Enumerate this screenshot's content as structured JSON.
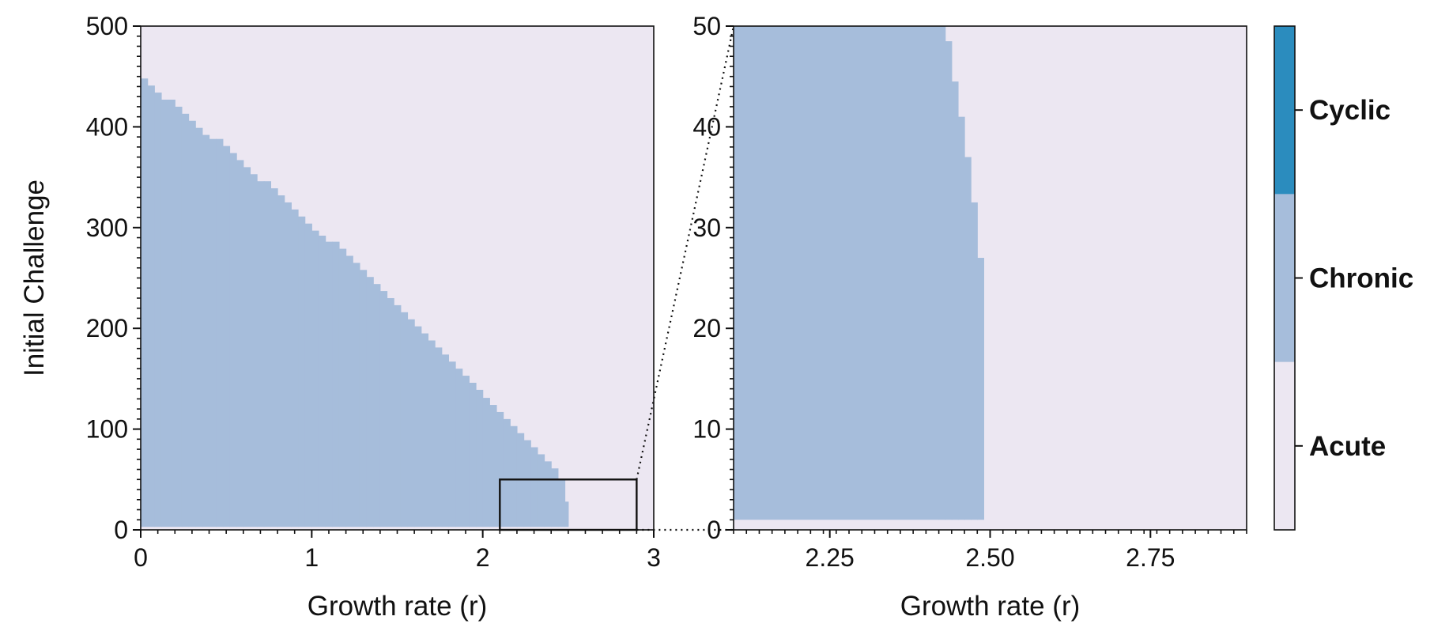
{
  "chart_data": [
    {
      "type": "heatmap",
      "panel": "main",
      "xlabel": "Growth rate (r)",
      "ylabel": "Initial Challenge",
      "xlim": [
        0,
        3
      ],
      "ylim": [
        0,
        500
      ],
      "xticks": [
        {
          "value": 0,
          "label": "0"
        },
        {
          "value": 1,
          "label": "1"
        },
        {
          "value": 2,
          "label": "2"
        },
        {
          "value": 3,
          "label": "3"
        }
      ],
      "yticks": [
        {
          "value": 0,
          "label": "0"
        },
        {
          "value": 100,
          "label": "100"
        },
        {
          "value": 200,
          "label": "200"
        },
        {
          "value": 300,
          "label": "300"
        },
        {
          "value": 400,
          "label": "400"
        },
        {
          "value": 500,
          "label": "500"
        }
      ],
      "background_class": "Acute",
      "regions": [
        {
          "class": "Chronic",
          "lower_bound": 3,
          "boundary": {
            "x": [
              0.0,
              0.04,
              0.08,
              0.12,
              0.16,
              0.2,
              0.24,
              0.28,
              0.32,
              0.36,
              0.4,
              0.44,
              0.48,
              0.52,
              0.56,
              0.6,
              0.64,
              0.68,
              0.72,
              0.76,
              0.8,
              0.84,
              0.88,
              0.92,
              0.96,
              1.0,
              1.04,
              1.08,
              1.12,
              1.16,
              1.2,
              1.24,
              1.28,
              1.32,
              1.36,
              1.4,
              1.44,
              1.48,
              1.52,
              1.56,
              1.6,
              1.64,
              1.68,
              1.72,
              1.76,
              1.8,
              1.84,
              1.88,
              1.92,
              1.96,
              2.0,
              2.04,
              2.08,
              2.12,
              2.16,
              2.2,
              2.24,
              2.28,
              2.32,
              2.36,
              2.4,
              2.44,
              2.48,
              2.5
            ],
            "y": [
              448,
              441,
              434,
              427,
              427,
              420,
              413,
              406,
              399,
              392,
              388,
              388,
              381,
              374,
              367,
              360,
              353,
              346,
              346,
              339,
              332,
              325,
              318,
              311,
              304,
              297,
              292,
              286,
              286,
              279,
              272,
              265,
              258,
              251,
              244,
              237,
              230,
              223,
              216,
              209,
              202,
              195,
              188,
              181,
              174,
              167,
              160,
              153,
              146,
              139,
              131,
              124,
              117,
              110,
              103,
              96,
              89,
              82,
              75,
              68,
              61,
              50,
              28,
              0
            ]
          }
        }
      ],
      "inset_box": {
        "x": [
          2.1,
          2.9
        ],
        "y": [
          0,
          50
        ]
      }
    },
    {
      "type": "heatmap",
      "panel": "zoom",
      "xlabel": "Growth rate (r)",
      "ylabel": "",
      "xlim": [
        2.1,
        2.9
      ],
      "ylim": [
        0,
        50
      ],
      "xticks": [
        {
          "value": 2.25,
          "label": "2.25"
        },
        {
          "value": 2.5,
          "label": "2.50"
        },
        {
          "value": 2.75,
          "label": "2.75"
        }
      ],
      "yticks": [
        {
          "value": 0,
          "label": "0"
        },
        {
          "value": 10,
          "label": "10"
        },
        {
          "value": 20,
          "label": "20"
        },
        {
          "value": 30,
          "label": "30"
        },
        {
          "value": 40,
          "label": "40"
        },
        {
          "value": 50,
          "label": "50"
        }
      ],
      "background_class": "Acute",
      "regions": [
        {
          "class": "Chronic",
          "lower_bound": 1,
          "boundary": {
            "x": [
              2.1,
              2.42,
              2.43,
              2.44,
              2.45,
              2.46,
              2.47,
              2.48,
              2.49
            ],
            "y": [
              50,
              50,
              48.5,
              44.5,
              41,
              37,
              32.5,
              27,
              19.5
            ]
          }
        }
      ]
    }
  ],
  "colorbar": {
    "categories": [
      {
        "label": "Cyclic",
        "color": "#2b8cbe"
      },
      {
        "label": "Chronic",
        "color": "#a6bddb"
      },
      {
        "label": "Acute",
        "color": "#ece7f2"
      }
    ]
  }
}
